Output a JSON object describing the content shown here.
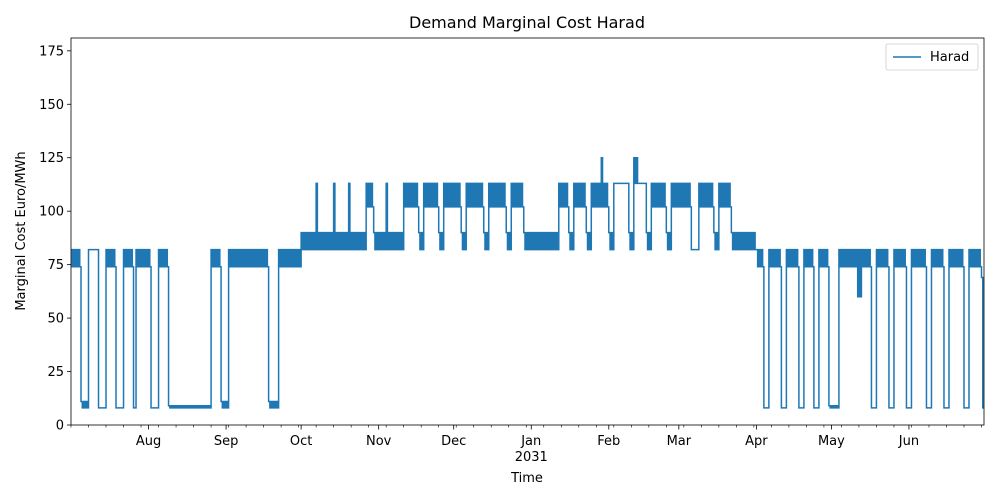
{
  "chart_data": {
    "type": "line",
    "title": "Demand Marginal Cost Harad",
    "xlabel": "Time",
    "ylabel": "Marginal Cost Euro/MWh",
    "ylim": [
      0,
      181
    ],
    "yticks": [
      0,
      25,
      50,
      75,
      100,
      125,
      150,
      175
    ],
    "xlim": [
      "2030-07-01",
      "2031-07-01"
    ],
    "xticks": [
      {
        "label": "Aug",
        "date": "2030-08-01"
      },
      {
        "label": "Sep",
        "date": "2030-09-01"
      },
      {
        "label": "Oct",
        "date": "2030-10-01"
      },
      {
        "label": "Nov",
        "date": "2030-11-01"
      },
      {
        "label": "Dec",
        "date": "2030-12-01"
      },
      {
        "label": "Jan",
        "date": "2031-01-01",
        "sublabel": "2031"
      },
      {
        "label": "Feb",
        "date": "2031-02-01"
      },
      {
        "label": "Mar",
        "date": "2031-03-01"
      },
      {
        "label": "Apr",
        "date": "2031-04-01"
      },
      {
        "label": "May",
        "date": "2031-05-01"
      },
      {
        "label": "Jun",
        "date": "2031-06-01"
      }
    ],
    "grid": false,
    "legend_position": "top-right",
    "series": [
      {
        "name": "Harad",
        "color": "#1f77b4",
        "segments": [
          {
            "start": "2030-07-01",
            "end": "2030-07-05",
            "pattern": "band",
            "low": 74,
            "high": 82
          },
          {
            "start": "2030-07-05",
            "end": "2030-07-08",
            "pattern": "band",
            "low": 8,
            "high": 11
          },
          {
            "start": "2030-07-08",
            "end": "2030-07-12",
            "pattern": "flat",
            "value": 82
          },
          {
            "start": "2030-07-12",
            "end": "2030-07-15",
            "pattern": "flat",
            "value": 8
          },
          {
            "start": "2030-07-15",
            "end": "2030-07-19",
            "pattern": "band",
            "low": 74,
            "high": 82
          },
          {
            "start": "2030-07-19",
            "end": "2030-07-22",
            "pattern": "flat",
            "value": 8
          },
          {
            "start": "2030-07-22",
            "end": "2030-07-26",
            "pattern": "band",
            "low": 74,
            "high": 82
          },
          {
            "start": "2030-07-26",
            "end": "2030-07-27",
            "pattern": "flat",
            "value": 8
          },
          {
            "start": "2030-07-27",
            "end": "2030-08-02",
            "pattern": "band",
            "low": 74,
            "high": 82
          },
          {
            "start": "2030-08-02",
            "end": "2030-08-05",
            "pattern": "flat",
            "value": 8
          },
          {
            "start": "2030-08-05",
            "end": "2030-08-09",
            "pattern": "band",
            "low": 74,
            "high": 82
          },
          {
            "start": "2030-08-09",
            "end": "2030-08-26",
            "pattern": "band",
            "low": 8,
            "high": 9
          },
          {
            "start": "2030-08-26",
            "end": "2030-08-30",
            "pattern": "band",
            "low": 74,
            "high": 82
          },
          {
            "start": "2030-08-30",
            "end": "2030-09-02",
            "pattern": "band",
            "low": 8,
            "high": 11
          },
          {
            "start": "2030-09-02",
            "end": "2030-09-18",
            "pattern": "band",
            "low": 74,
            "high": 82
          },
          {
            "start": "2030-09-18",
            "end": "2030-09-22",
            "pattern": "band",
            "low": 8,
            "high": 11
          },
          {
            "start": "2030-09-22",
            "end": "2030-10-01",
            "pattern": "band",
            "low": 74,
            "high": 82
          },
          {
            "start": "2030-10-01",
            "end": "2030-10-07",
            "pattern": "band",
            "low": 82,
            "high": 90
          },
          {
            "start": "2030-10-07",
            "end": "2030-10-08",
            "pattern": "band",
            "low": 82,
            "high": 113
          },
          {
            "start": "2030-10-08",
            "end": "2030-10-14",
            "pattern": "band",
            "low": 82,
            "high": 90
          },
          {
            "start": "2030-10-14",
            "end": "2030-10-15",
            "pattern": "band",
            "low": 82,
            "high": 113
          },
          {
            "start": "2030-10-15",
            "end": "2030-10-20",
            "pattern": "band",
            "low": 82,
            "high": 90
          },
          {
            "start": "2030-10-20",
            "end": "2030-10-21",
            "pattern": "band",
            "low": 82,
            "high": 113
          },
          {
            "start": "2030-10-21",
            "end": "2030-10-27",
            "pattern": "band",
            "low": 82,
            "high": 90
          },
          {
            "start": "2030-10-27",
            "end": "2030-10-30",
            "pattern": "band",
            "low": 102,
            "high": 113
          },
          {
            "start": "2030-10-30",
            "end": "2030-11-04",
            "pattern": "band",
            "low": 82,
            "high": 90
          },
          {
            "start": "2030-11-04",
            "end": "2030-11-05",
            "pattern": "band",
            "low": 82,
            "high": 113
          },
          {
            "start": "2030-11-05",
            "end": "2030-11-11",
            "pattern": "band",
            "low": 82,
            "high": 90
          },
          {
            "start": "2030-11-11",
            "end": "2030-11-17",
            "pattern": "band",
            "low": 102,
            "high": 113
          },
          {
            "start": "2030-11-17",
            "end": "2030-11-19",
            "pattern": "band",
            "low": 82,
            "high": 90
          },
          {
            "start": "2030-11-19",
            "end": "2030-11-25",
            "pattern": "band",
            "low": 102,
            "high": 113
          },
          {
            "start": "2030-11-25",
            "end": "2030-11-27",
            "pattern": "band",
            "low": 82,
            "high": 90
          },
          {
            "start": "2030-11-27",
            "end": "2030-12-04",
            "pattern": "band",
            "low": 102,
            "high": 113
          },
          {
            "start": "2030-12-04",
            "end": "2030-12-06",
            "pattern": "band",
            "low": 82,
            "high": 90
          },
          {
            "start": "2030-12-06",
            "end": "2030-12-13",
            "pattern": "band",
            "low": 102,
            "high": 113
          },
          {
            "start": "2030-12-13",
            "end": "2030-12-15",
            "pattern": "band",
            "low": 82,
            "high": 90
          },
          {
            "start": "2030-12-15",
            "end": "2030-12-22",
            "pattern": "band",
            "low": 102,
            "high": 113
          },
          {
            "start": "2030-12-22",
            "end": "2030-12-24",
            "pattern": "band",
            "low": 82,
            "high": 90
          },
          {
            "start": "2030-12-24",
            "end": "2030-12-29",
            "pattern": "band",
            "low": 102,
            "high": 113
          },
          {
            "start": "2030-12-29",
            "end": "2031-01-12",
            "pattern": "band",
            "low": 82,
            "high": 90
          },
          {
            "start": "2031-01-12",
            "end": "2031-01-16",
            "pattern": "band",
            "low": 102,
            "high": 113
          },
          {
            "start": "2031-01-16",
            "end": "2031-01-18",
            "pattern": "band",
            "low": 82,
            "high": 90
          },
          {
            "start": "2031-01-18",
            "end": "2031-01-23",
            "pattern": "band",
            "low": 102,
            "high": 113
          },
          {
            "start": "2031-01-23",
            "end": "2031-01-25",
            "pattern": "band",
            "low": 82,
            "high": 90
          },
          {
            "start": "2031-01-25",
            "end": "2031-01-29",
            "pattern": "band",
            "low": 102,
            "high": 113
          },
          {
            "start": "2031-01-29",
            "end": "2031-01-30",
            "pattern": "band",
            "low": 102,
            "high": 125
          },
          {
            "start": "2031-01-30",
            "end": "2031-02-01",
            "pattern": "band",
            "low": 102,
            "high": 113
          },
          {
            "start": "2031-02-01",
            "end": "2031-02-03",
            "pattern": "band",
            "low": 82,
            "high": 90
          },
          {
            "start": "2031-02-03",
            "end": "2031-02-09",
            "pattern": "flat",
            "value": 113
          },
          {
            "start": "2031-02-09",
            "end": "2031-02-11",
            "pattern": "band",
            "low": 82,
            "high": 90
          },
          {
            "start": "2031-02-11",
            "end": "2031-02-13",
            "pattern": "band",
            "low": 113,
            "high": 125
          },
          {
            "start": "2031-02-13",
            "end": "2031-02-16",
            "pattern": "flat",
            "value": 113
          },
          {
            "start": "2031-02-16",
            "end": "2031-02-18",
            "pattern": "band",
            "low": 82,
            "high": 90
          },
          {
            "start": "2031-02-18",
            "end": "2031-02-24",
            "pattern": "band",
            "low": 102,
            "high": 113
          },
          {
            "start": "2031-02-24",
            "end": "2031-02-26",
            "pattern": "band",
            "low": 82,
            "high": 90
          },
          {
            "start": "2031-02-26",
            "end": "2031-03-06",
            "pattern": "band",
            "low": 102,
            "high": 113
          },
          {
            "start": "2031-03-06",
            "end": "2031-03-09",
            "pattern": "flat",
            "value": 82
          },
          {
            "start": "2031-03-09",
            "end": "2031-03-15",
            "pattern": "band",
            "low": 102,
            "high": 113
          },
          {
            "start": "2031-03-15",
            "end": "2031-03-17",
            "pattern": "band",
            "low": 82,
            "high": 90
          },
          {
            "start": "2031-03-17",
            "end": "2031-03-22",
            "pattern": "band",
            "low": 102,
            "high": 113
          },
          {
            "start": "2031-03-22",
            "end": "2031-04-01",
            "pattern": "band",
            "low": 82,
            "high": 90
          },
          {
            "start": "2031-04-01",
            "end": "2031-04-04",
            "pattern": "band",
            "low": 74,
            "high": 82
          },
          {
            "start": "2031-04-04",
            "end": "2031-04-06",
            "pattern": "flat",
            "value": 8
          },
          {
            "start": "2031-04-06",
            "end": "2031-04-11",
            "pattern": "band",
            "low": 74,
            "high": 82
          },
          {
            "start": "2031-04-11",
            "end": "2031-04-13",
            "pattern": "flat",
            "value": 8
          },
          {
            "start": "2031-04-13",
            "end": "2031-04-18",
            "pattern": "band",
            "low": 74,
            "high": 82
          },
          {
            "start": "2031-04-18",
            "end": "2031-04-20",
            "pattern": "flat",
            "value": 8
          },
          {
            "start": "2031-04-20",
            "end": "2031-04-24",
            "pattern": "band",
            "low": 74,
            "high": 82
          },
          {
            "start": "2031-04-24",
            "end": "2031-04-26",
            "pattern": "flat",
            "value": 8
          },
          {
            "start": "2031-04-26",
            "end": "2031-04-30",
            "pattern": "band",
            "low": 74,
            "high": 82
          },
          {
            "start": "2031-04-30",
            "end": "2031-05-04",
            "pattern": "band",
            "low": 8,
            "high": 9
          },
          {
            "start": "2031-05-04",
            "end": "2031-05-11",
            "pattern": "band",
            "low": 74,
            "high": 82
          },
          {
            "start": "2031-05-11",
            "end": "2031-05-13",
            "pattern": "band",
            "low": 60,
            "high": 82
          },
          {
            "start": "2031-05-13",
            "end": "2031-05-17",
            "pattern": "band",
            "low": 74,
            "high": 82
          },
          {
            "start": "2031-05-17",
            "end": "2031-05-19",
            "pattern": "flat",
            "value": 8
          },
          {
            "start": "2031-05-19",
            "end": "2031-05-24",
            "pattern": "band",
            "low": 74,
            "high": 82
          },
          {
            "start": "2031-05-24",
            "end": "2031-05-26",
            "pattern": "flat",
            "value": 8
          },
          {
            "start": "2031-05-26",
            "end": "2031-05-31",
            "pattern": "band",
            "low": 74,
            "high": 82
          },
          {
            "start": "2031-05-31",
            "end": "2031-06-02",
            "pattern": "flat",
            "value": 8
          },
          {
            "start": "2031-06-02",
            "end": "2031-06-08",
            "pattern": "band",
            "low": 74,
            "high": 82
          },
          {
            "start": "2031-06-08",
            "end": "2031-06-10",
            "pattern": "flat",
            "value": 8
          },
          {
            "start": "2031-06-10",
            "end": "2031-06-15",
            "pattern": "band",
            "low": 74,
            "high": 82
          },
          {
            "start": "2031-06-15",
            "end": "2031-06-17",
            "pattern": "flat",
            "value": 8
          },
          {
            "start": "2031-06-17",
            "end": "2031-06-23",
            "pattern": "band",
            "low": 74,
            "high": 82
          },
          {
            "start": "2031-06-23",
            "end": "2031-06-25",
            "pattern": "flat",
            "value": 8
          },
          {
            "start": "2031-06-25",
            "end": "2031-06-30",
            "pattern": "band",
            "low": 74,
            "high": 82
          },
          {
            "start": "2031-06-30",
            "end": "2031-07-01",
            "pattern": "band",
            "low": 8,
            "high": 69
          }
        ]
      }
    ]
  }
}
